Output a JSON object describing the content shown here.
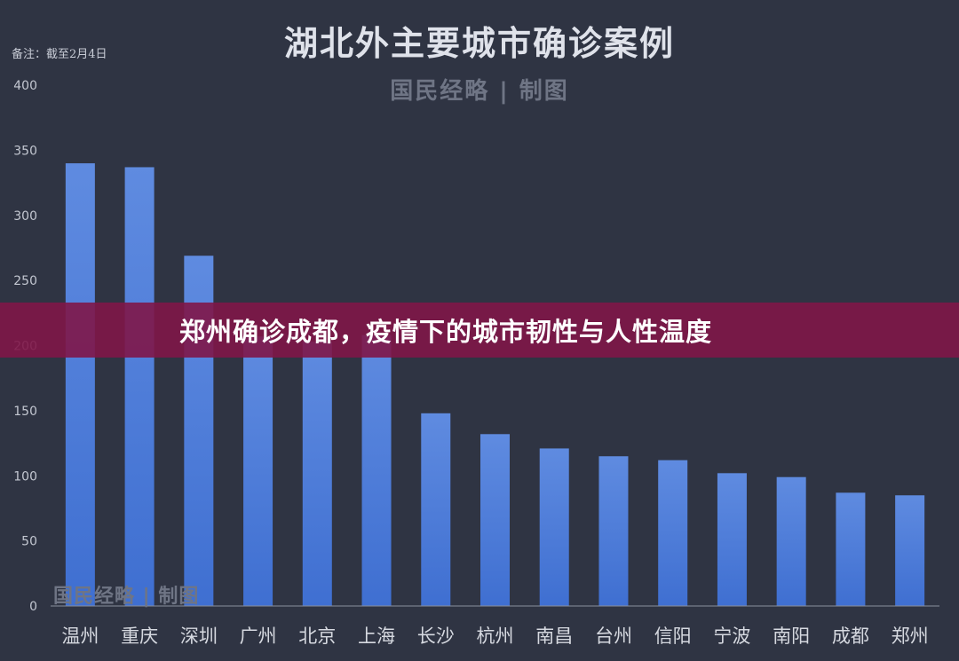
{
  "chart_data": {
    "type": "bar",
    "title": "湖北外主要城市确诊案例",
    "note": "备注：截至2月4日",
    "categories": [
      "温州",
      "重庆",
      "深圳",
      "广州",
      "北京",
      "上海",
      "长沙",
      "杭州",
      "南昌",
      "台州",
      "信阳",
      "宁波",
      "南阳",
      "成都",
      "郑州"
    ],
    "values": [
      340,
      337,
      269,
      207,
      203,
      208,
      148,
      132,
      121,
      115,
      112,
      102,
      99,
      87,
      85
    ],
    "ylim": [
      0,
      400
    ],
    "yticks": [
      0,
      50,
      100,
      150,
      200,
      250,
      300,
      350,
      400
    ],
    "xlabel": "",
    "ylabel": "",
    "grid": false,
    "bar_color": "#4a78d6"
  },
  "watermark": {
    "top": "国民经略 | 制图",
    "bottom": "国民经略 | 制图"
  },
  "banner": {
    "text": "郑州确诊成都，疫情下的城市韧性与人性温度"
  }
}
